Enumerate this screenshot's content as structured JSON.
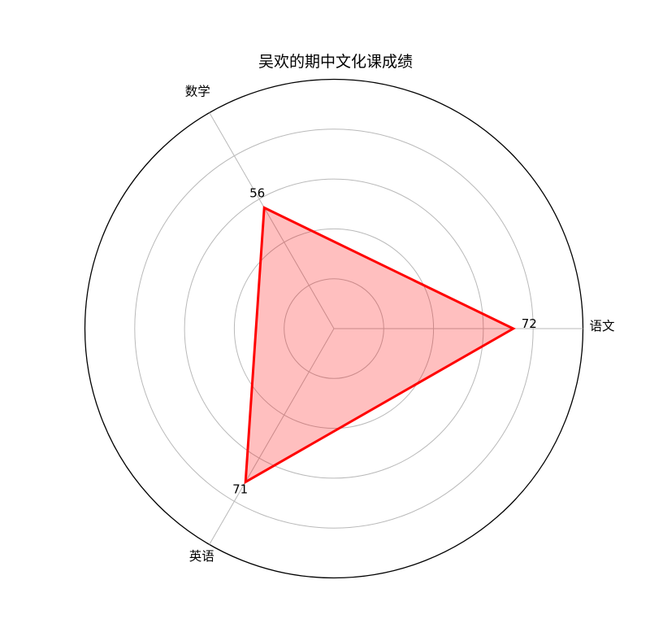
{
  "page": {
    "background": "#ffffff"
  },
  "chart_data": {
    "type": "radar",
    "title": "吴欢的期中文化课成绩",
    "categories": [
      "数学",
      "语文",
      "英语"
    ],
    "angles_deg": [
      120,
      0,
      240
    ],
    "series": [
      {
        "name": "吴欢",
        "values": [
          56,
          72,
          71
        ]
      }
    ],
    "value_labels": [
      "56",
      "72",
      "71"
    ],
    "r_max": 100,
    "r_ticks": [
      20,
      40,
      60,
      80,
      100
    ],
    "r_tick_labels_visible": false,
    "grid": true,
    "legend_position": "none",
    "colors": {
      "line": "#ff0000",
      "fill": "rgba(255,0,0,0.25)",
      "grid": "#b9b9b9",
      "outline": "#000000",
      "text": "#000000"
    }
  }
}
